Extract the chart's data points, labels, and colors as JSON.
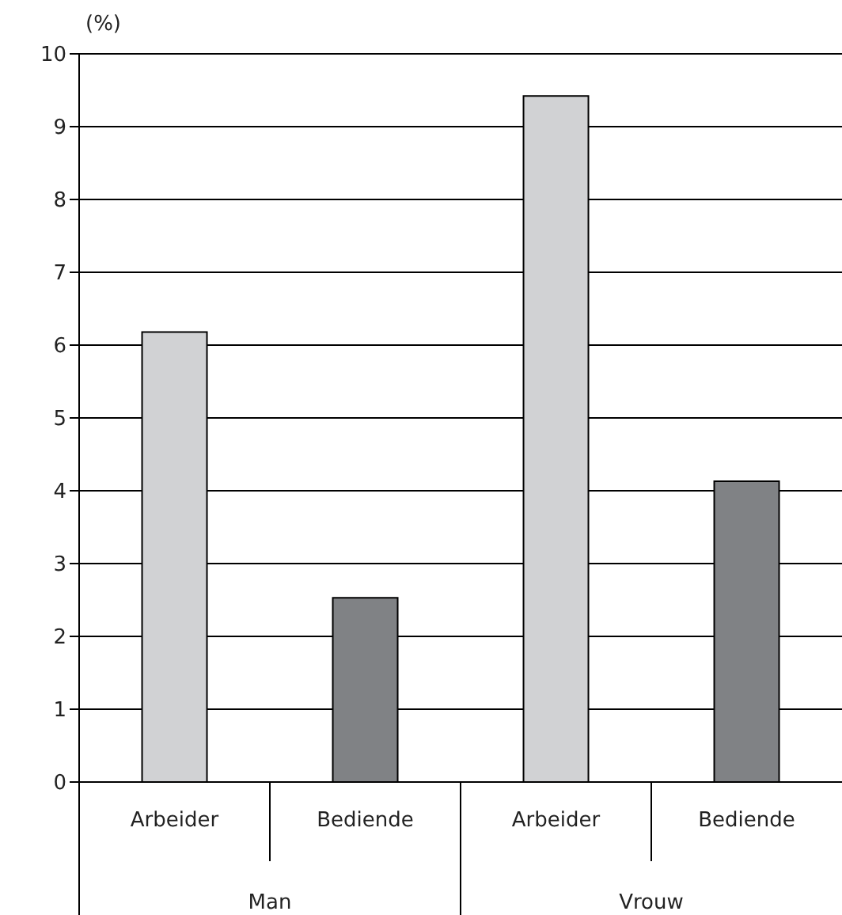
{
  "chart_data": {
    "type": "bar",
    "ylabel": "(%)",
    "categories": [
      "Arbeider",
      "Bediende",
      "Arbeider",
      "Bediende"
    ],
    "values": [
      6.18,
      2.53,
      9.42,
      4.13
    ],
    "colors": [
      "#d1d2d4",
      "#808285",
      "#d1d2d4",
      "#808285"
    ],
    "ylim": [
      0,
      10
    ],
    "yticks": [
      0,
      1,
      2,
      3,
      4,
      5,
      6,
      7,
      8,
      9,
      10
    ],
    "grid": "y",
    "annotations": [
      "Man",
      "Vrouw"
    ]
  }
}
